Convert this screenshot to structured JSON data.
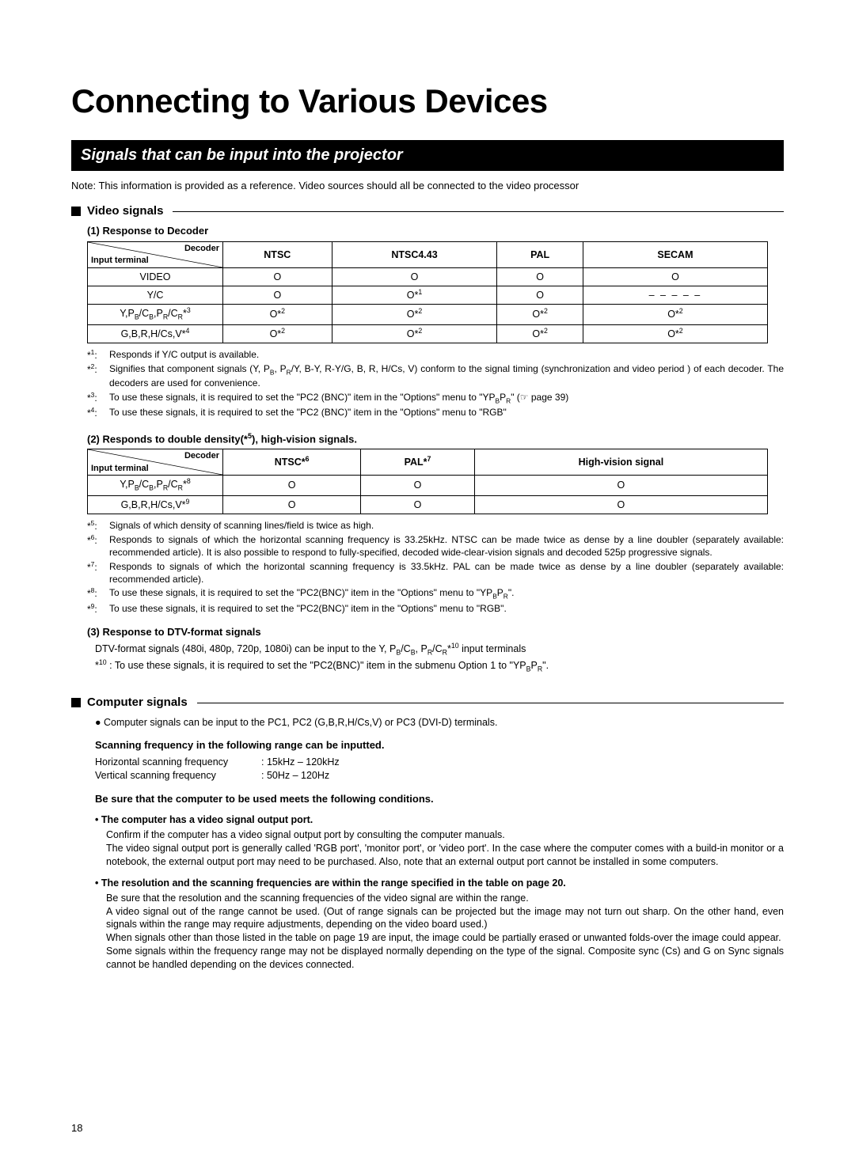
{
  "title": "Connecting to Various Devices",
  "section_bar": "Signals that can be input into the projector",
  "note": "Note: This information is provided as a reference. Video sources should all be connected to the video processor",
  "video_heading": "Video signals",
  "computer_heading": "Computer signals",
  "sub1_title": "(1) Response to Decoder",
  "sub2_title": "(2) Responds to double density(*",
  "sub2_title_tail": "), high-vision signals.",
  "sub2_sup": "5",
  "sub3_title": "(3) Response to DTV-format signals",
  "table1": {
    "diag_top": "Decoder",
    "diag_bottom": "Input terminal",
    "headers": [
      "NTSC",
      "NTSC4.43",
      "PAL",
      "SECAM"
    ],
    "rows": [
      {
        "label_html": "VIDEO",
        "cells": [
          "O",
          "O",
          "O",
          "O"
        ]
      },
      {
        "label_html": "Y/C",
        "cells": [
          "O",
          "O*1",
          "O",
          "dashes"
        ]
      },
      {
        "label_html": "YPBCB_PRCR_*3",
        "cells": [
          "O*2",
          "O*2",
          "O*2",
          "O*2"
        ]
      },
      {
        "label_html": "GBRHCSV_*4",
        "cells": [
          "O*2",
          "O*2",
          "O*2",
          "O*2"
        ]
      }
    ]
  },
  "table2": {
    "diag_top": "Decoder",
    "diag_bottom": "Input terminal",
    "headers": [
      "NTSC*6",
      "PAL*7",
      "High-vision signal"
    ],
    "rows": [
      {
        "label_html": "YPBCB_PRCR_*8",
        "cells": [
          "O",
          "O",
          "O"
        ]
      },
      {
        "label_html": "GBRHCSV_*9",
        "cells": [
          "O",
          "O",
          "O"
        ]
      }
    ]
  },
  "footnotes1": [
    {
      "marker": "*1:",
      "text": "Responds if Y/C output is available.",
      "sup": "1"
    },
    {
      "marker": "*2:",
      "text": "Signifies that component signals (Y, PB, PR/Y, B-Y, R-Y/G, B, R, H/Cs, V) conform to the signal timing (synchronization and video period ) of each decoder. The decoders are used for convenience.",
      "sup": "2",
      "justify": true
    },
    {
      "marker": "*3:",
      "text": "To use these signals, it is required to set the \"PC2 (BNC)\" item in the \"Options\" menu to \"YPBPR\" (☞ page 39)",
      "sup": "3"
    },
    {
      "marker": "*4:",
      "text": "To use these signals, it is required to set the \"PC2 (BNC)\" item in the \"Options\" menu to \"RGB\"",
      "sup": "4"
    }
  ],
  "footnotes2": [
    {
      "marker": "*5:",
      "text": "Signals of which density of scanning lines/field is twice as high.",
      "sup": "5"
    },
    {
      "marker": "*6:",
      "text": "Responds to signals of which the horizontal scanning frequency is 33.25kHz. NTSC can be made twice as dense by a line doubler (separately available: recommended article). It is also possible to respond to fully-specified, decoded wide-clear-vision signals and decoded 525p progressive signals.",
      "sup": "6",
      "justify": true
    },
    {
      "marker": "*7:",
      "text": "Responds to signals of which the horizontal scanning frequency is 33.5kHz. PAL can be made twice as dense by a line doubler (separately available: recommended article).",
      "sup": "7",
      "justify": true
    },
    {
      "marker": "*8:",
      "text": "To use these signals, it is required to set the \"PC2(BNC)\" item in the \"Options\" menu to \"YPBPR\".",
      "sup": "8"
    },
    {
      "marker": "*9:",
      "text": "To use these signals, it is required to set the \"PC2(BNC)\" item in the \"Options\" menu to \"RGB\".",
      "sup": "9"
    }
  ],
  "sub3_line1": "DTV-format signals (480i, 480p, 720p, 1080i) can be input to the Y, PB/CB, PR/CR*10 input terminals",
  "sub3_line2_marker": "*10 :",
  "sub3_line2_text": "To use these signals, it is required to set the \"PC2(BNC)\" item in the submenu Option 1 to \"YPBPR\".",
  "computer_intro": "Computer signals can be input to the PC1, PC2 (G,B,R,H/Cs,V) or PC3 (DVI-D) terminals.",
  "scan_range_heading": "Scanning frequency in the following range can be inputted.",
  "hfreq_label": "Horizontal scanning frequency",
  "hfreq_val": ": 15kHz – 120kHz",
  "vfreq_label": "Vertical scanning frequency",
  "vfreq_val": ": 50Hz – 120Hz",
  "conditions_heading": "Be sure that the computer to be used meets the following conditions.",
  "bullet1_title": "The computer has a video signal output port.",
  "bullet1_line1": "Confirm if the computer has a video signal output port by consulting the computer manuals.",
  "bullet1_line2": "The video signal output port is generally called 'RGB port', 'monitor port', or 'video port'. In the case where the computer comes with a build-in monitor or a notebook, the external output port may need to be purchased. Also, note that an external output port cannot be installed in some computers.",
  "bullet2_title": "The resolution and the scanning frequencies are within the range specified in the table on page 20.",
  "bullet2_line1": "Be sure that the resolution and the scanning frequencies of the video signal are within the range.",
  "bullet2_line2": "A video signal out of the range cannot be used. (Out of range signals can be projected but the image may not turn out sharp. On the other hand, even signals within the range may require adjustments, depending on the video board used.)",
  "bullet2_line3": "When signals other than those listed in the table on page 19 are input, the image could be partially erased or unwanted folds-over the image could appear.",
  "bullet2_line4": "Some signals within the frequency range may not be displayed normally depending on the type of the signal. Composite sync (Cs) and G on Sync signals cannot be handled depending on the devices connected.",
  "page_number": "18",
  "dashes": "– – – – –"
}
